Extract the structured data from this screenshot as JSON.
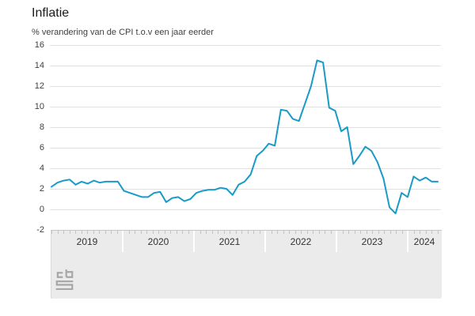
{
  "title": "Inflatie",
  "subtitle": "% verandering van de CPI t.o.v een jaar eerder",
  "source_logo": "cbs-logo",
  "colors": {
    "line": "#1a9ac6",
    "grid": "#e1e1e1",
    "panel": "#ebebeb",
    "panel_edge": "#c6c6c6",
    "separator": "#ffffff",
    "title_text": "#1a1a1a",
    "label_text": "#404040",
    "logo": "#a6a6a6"
  },
  "chart_data": {
    "type": "line",
    "title": "Inflatie",
    "subtitle": "% verandering van de CPI t.o.v een jaar eerder",
    "x_start": "2019-01",
    "x_end": "2024-05",
    "year_labels": [
      "2019",
      "2020",
      "2021",
      "2022",
      "2023",
      "2024"
    ],
    "yticks": [
      16,
      14,
      12,
      10,
      8,
      6,
      4,
      2,
      0,
      -2
    ],
    "ylim": [
      -2,
      16
    ],
    "grid": "horizontal-only",
    "legend": "none",
    "series": [
      {
        "name": "Inflatie (CPI, % t.o.v. jaar eerder)",
        "values_by_year": {
          "2019": [
            2.2,
            2.6,
            2.8,
            2.9,
            2.4,
            2.7,
            2.5,
            2.8,
            2.6,
            2.7,
            2.7,
            2.7
          ],
          "2020": [
            1.8,
            1.6,
            1.4,
            1.2,
            1.2,
            1.6,
            1.7,
            0.7,
            1.1,
            1.2,
            0.8,
            1.0
          ],
          "2021": [
            1.6,
            1.8,
            1.9,
            1.9,
            2.1,
            2.0,
            1.4,
            2.4,
            2.7,
            3.4,
            5.2,
            5.7
          ],
          "2022": [
            6.4,
            6.2,
            9.7,
            9.6,
            8.8,
            8.6,
            10.3,
            12.0,
            14.5,
            14.3,
            9.9,
            9.6
          ],
          "2023": [
            7.6,
            8.0,
            4.4,
            5.2,
            6.1,
            5.7,
            4.6,
            3.0,
            0.2,
            -0.4,
            1.6,
            1.2
          ],
          "2024": [
            3.2,
            2.8,
            3.1,
            2.7,
            2.7
          ]
        }
      }
    ]
  }
}
